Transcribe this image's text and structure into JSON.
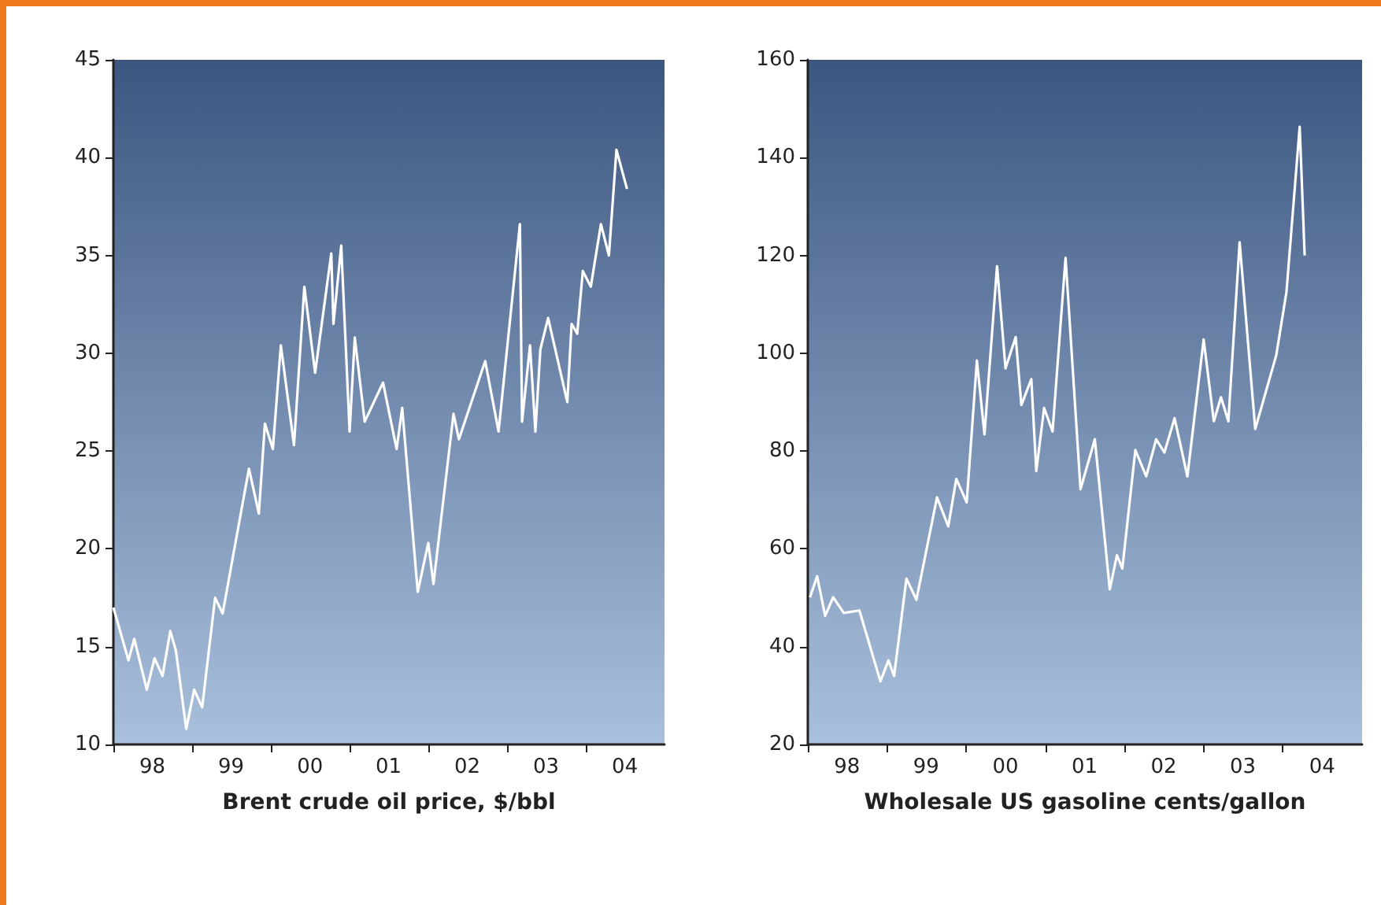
{
  "chart_data": [
    {
      "type": "line",
      "xlabel": "Brent crude oil price, $/bbl",
      "marker": "none",
      "xlim": [
        "1998-01-01",
        "2005-01-01"
      ],
      "ylim": [
        10,
        45
      ],
      "yticks": [
        10,
        15,
        20,
        25,
        30,
        35,
        40,
        45
      ],
      "xticks": [
        {
          "value": "1998-01-01",
          "label": null
        },
        {
          "value": "1998-07-01",
          "label": "98"
        },
        {
          "value": "1999-01-01",
          "label": null
        },
        {
          "value": "1999-07-01",
          "label": "99"
        },
        {
          "value": "2000-01-01",
          "label": null
        },
        {
          "value": "2000-07-01",
          "label": "00"
        },
        {
          "value": "2001-01-01",
          "label": null
        },
        {
          "value": "2001-07-01",
          "label": "01"
        },
        {
          "value": "2002-01-01",
          "label": null
        },
        {
          "value": "2002-07-01",
          "label": "02"
        },
        {
          "value": "2003-01-01",
          "label": null
        },
        {
          "value": "2003-07-01",
          "label": "03"
        },
        {
          "value": "2004-01-01",
          "label": null
        },
        {
          "value": "2004-07-01",
          "label": "04"
        }
      ],
      "series": [
        {
          "color": "#ffffff",
          "x": [
            "1998-01-01",
            "1998-03-12",
            "1998-04-08",
            "1998-06-05",
            "1998-07-11",
            "1998-08-17",
            "1998-09-22",
            "1998-10-18",
            "1998-12-05",
            "1999-01-11",
            "1999-02-17",
            "1999-04-18",
            "1999-05-23",
            "1999-09-22",
            "1999-11-07",
            "1999-12-05",
            "2000-01-11",
            "2000-02-17",
            "2000-04-18",
            "2000-06-05",
            "2000-07-25",
            "2000-10-08",
            "2000-10-18",
            "2000-11-23",
            "2001-01-01",
            "2001-01-25",
            "2001-03-12",
            "2001-06-05",
            "2001-08-07",
            "2001-09-02",
            "2001-11-13",
            "2002-01-01",
            "2002-01-25",
            "2002-04-28",
            "2002-05-23",
            "2002-09-22",
            "2002-11-23",
            "2003-03-02",
            "2003-03-12",
            "2003-04-18",
            "2003-05-13",
            "2003-06-05",
            "2003-07-11",
            "2003-10-08",
            "2003-10-28",
            "2003-11-23",
            "2003-12-19",
            "2004-01-25",
            "2004-03-12",
            "2004-04-18",
            "2004-05-23",
            "2004-07-11"
          ],
          "values": [
            17.0,
            14.3,
            15.4,
            12.8,
            14.4,
            13.5,
            15.8,
            14.8,
            10.8,
            12.8,
            11.9,
            17.5,
            16.7,
            24.1,
            21.8,
            26.4,
            25.1,
            30.4,
            25.3,
            33.4,
            29.0,
            35.1,
            31.5,
            35.5,
            26.0,
            30.8,
            26.5,
            28.5,
            25.1,
            27.2,
            17.8,
            20.3,
            18.2,
            26.9,
            25.6,
            29.6,
            26.0,
            36.6,
            26.5,
            30.4,
            26.0,
            30.2,
            31.8,
            27.5,
            31.5,
            31.0,
            34.2,
            33.4,
            36.6,
            35.0,
            40.4,
            38.4
          ]
        }
      ]
    },
    {
      "type": "line",
      "xlabel": "Wholesale US gasoline cents/gallon",
      "marker": "none",
      "xlim": [
        "1998-01-01",
        "2005-01-01"
      ],
      "ylim": [
        20,
        160
      ],
      "yticks": [
        20,
        40,
        60,
        80,
        100,
        120,
        140,
        160
      ],
      "xticks": [
        {
          "value": "1998-01-01",
          "label": null
        },
        {
          "value": "1998-07-01",
          "label": "98"
        },
        {
          "value": "1999-01-01",
          "label": null
        },
        {
          "value": "1999-07-01",
          "label": "99"
        },
        {
          "value": "2000-01-01",
          "label": null
        },
        {
          "value": "2000-07-01",
          "label": "00"
        },
        {
          "value": "2001-01-01",
          "label": null
        },
        {
          "value": "2001-07-01",
          "label": "01"
        },
        {
          "value": "2002-01-01",
          "label": null
        },
        {
          "value": "2002-07-01",
          "label": "02"
        },
        {
          "value": "2003-01-01",
          "label": null
        },
        {
          "value": "2003-07-01",
          "label": "03"
        },
        {
          "value": "2004-01-01",
          "label": null
        },
        {
          "value": "2004-07-01",
          "label": "04"
        }
      ],
      "series": [
        {
          "color": "#ffffff",
          "x": [
            "1998-01-11",
            "1998-02-13",
            "1998-03-22",
            "1998-04-28",
            "1998-06-16",
            "1998-08-27",
            "1998-12-02",
            "1999-01-08",
            "1999-02-03",
            "1999-04-01",
            "1999-05-17",
            "1999-08-20",
            "1999-10-11",
            "1999-11-17",
            "2000-01-04",
            "2000-02-20",
            "2000-03-26",
            "2000-05-23",
            "2000-07-01",
            "2000-08-17",
            "2000-09-12",
            "2000-10-28",
            "2000-11-20",
            "2000-12-26",
            "2001-02-03",
            "2001-04-04",
            "2001-06-12",
            "2001-08-17",
            "2001-10-25",
            "2001-11-27",
            "2001-12-22",
            "2002-02-20",
            "2002-04-11",
            "2002-05-27",
            "2002-07-04",
            "2002-08-20",
            "2002-10-18",
            "2003-01-01",
            "2003-02-17",
            "2003-03-22",
            "2003-04-25",
            "2003-06-16",
            "2003-08-27",
            "2003-12-02",
            "2004-01-18",
            "2004-03-19",
            "2004-04-11"
          ],
          "values": [
            50.1,
            54.4,
            46.3,
            50.1,
            46.9,
            47.4,
            32.9,
            37.2,
            34.0,
            53.9,
            49.6,
            70.5,
            64.6,
            74.3,
            69.5,
            98.5,
            83.4,
            117.8,
            96.9,
            103.3,
            89.4,
            94.7,
            75.9,
            88.8,
            84.0,
            119.5,
            72.2,
            82.4,
            51.7,
            58.7,
            56.0,
            80.2,
            74.8,
            82.4,
            79.7,
            86.7,
            74.8,
            102.8,
            86.1,
            91.0,
            86.1,
            122.7,
            84.5,
            99.6,
            112.5,
            146.3,
            120.0
          ]
        }
      ]
    }
  ]
}
